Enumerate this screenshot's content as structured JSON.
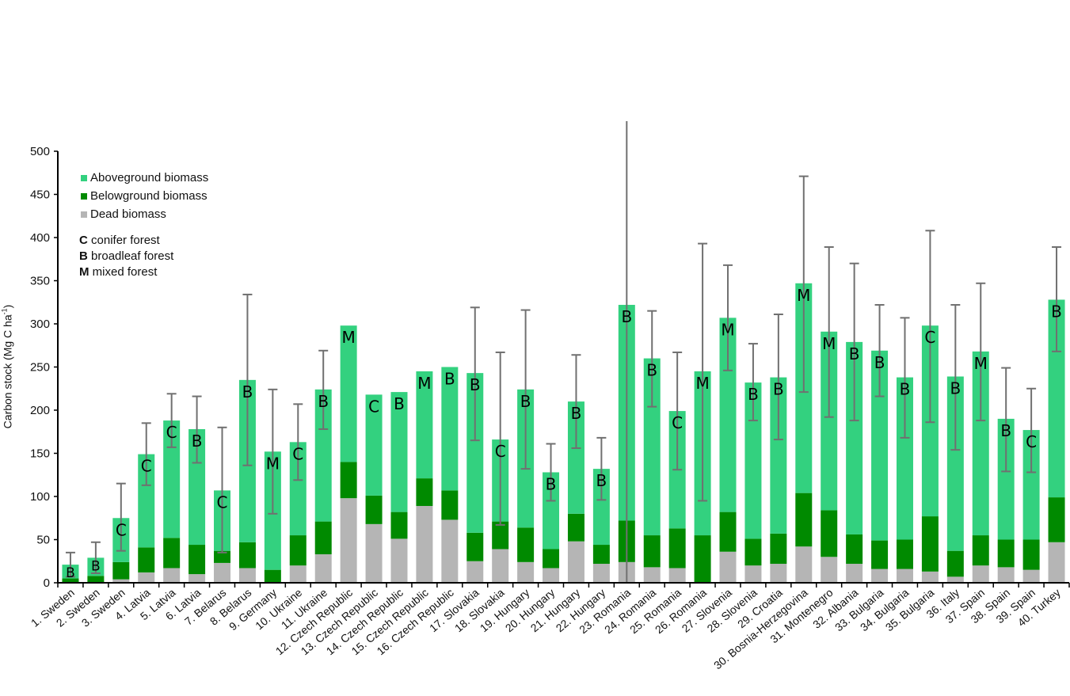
{
  "chart_data": {
    "type": "bar",
    "stacked": true,
    "title": "",
    "xlabel": "",
    "ylabel": "Carbon stock (Mg C ha",
    "ylabel_sup": "-1",
    "ylabel_suffix": ")",
    "ylim": [
      0,
      500
    ],
    "yticks": [
      0,
      50,
      100,
      150,
      200,
      250,
      300,
      350,
      400,
      450,
      500
    ],
    "grid": false,
    "legend_position": "top-left",
    "colors": {
      "aboveground": "#33D17F",
      "belowground": "#008A00",
      "dead": "#B5B5B5",
      "errorbar": "#707070"
    },
    "legend": [
      {
        "key": "aboveground",
        "label": "Aboveground biomass"
      },
      {
        "key": "belowground",
        "label": "Belowground biomass"
      },
      {
        "key": "dead",
        "label": "Dead biomass"
      }
    ],
    "forest_types": [
      {
        "code": "C",
        "label": "conifer forest"
      },
      {
        "code": "B",
        "label": "broadleaf forest"
      },
      {
        "code": "M",
        "label": "mixed forest"
      }
    ],
    "categories": [
      "1. Sweden",
      "2. Sweden",
      "3. Sweden",
      "4. Latvia",
      "5. Latvia",
      "6. Latvia",
      "7. Belarus",
      "8. Belarus",
      "9. Germany",
      "10. Ukraine",
      "11. Ukraine",
      "12. Czech Republic",
      "13. Czech Republic",
      "14. Czech Republic",
      "15. Czech Republic",
      "16. Czech Republic",
      "17. Slovakia",
      "18. Slovakia",
      "19. Hungary",
      "20. Hungary",
      "21. Hungary",
      "22. Hungary",
      "23. Romania",
      "24. Romania",
      "25. Romania",
      "26. Romania",
      "27. Slovenia",
      "28. Slovenia",
      "29. Croatia",
      "30. Bosnia-Herzegovina",
      "31. Montenegro",
      "32. Albania",
      "33. Bulgaria",
      "34. Bulgaria",
      "35. Bulgaria",
      "36. Italy",
      "37. Spain",
      "38. Spain",
      "39. Spain",
      "40. Turkey"
    ],
    "forest_type_labels": [
      "B",
      "B",
      "C",
      "C",
      "C",
      "B",
      "C",
      "B",
      "M",
      "C",
      "B",
      "M",
      "C",
      "B",
      "M",
      "B",
      "B",
      "C",
      "B",
      "B",
      "B",
      "B",
      "B",
      "B",
      "C",
      "M",
      "M",
      "B",
      "B",
      "M",
      "M",
      "B",
      "B",
      "B",
      "C",
      "B",
      "M",
      "B",
      "C",
      "B"
    ],
    "series": [
      {
        "name": "Dead biomass",
        "key": "dead",
        "values": [
          0,
          0,
          4,
          12,
          17,
          10,
          23,
          17,
          0,
          20,
          33,
          98,
          68,
          51,
          89,
          73,
          25,
          39,
          24,
          17,
          48,
          22,
          24,
          18,
          17,
          0,
          36,
          20,
          22,
          42,
          30,
          22,
          16,
          16,
          13,
          7,
          20,
          18,
          15,
          47
        ]
      },
      {
        "name": "Belowground biomass",
        "key": "belowground",
        "values": [
          5,
          8,
          20,
          29,
          35,
          34,
          14,
          30,
          15,
          35,
          38,
          42,
          33,
          31,
          32,
          34,
          33,
          32,
          40,
          22,
          32,
          22,
          48,
          37,
          46,
          55,
          46,
          31,
          35,
          62,
          54,
          34,
          33,
          34,
          64,
          30,
          35,
          32,
          35,
          52
        ]
      },
      {
        "name": "Aboveground biomass",
        "key": "aboveground",
        "values": [
          16,
          21,
          51,
          108,
          136,
          134,
          70,
          188,
          137,
          108,
          153,
          158,
          117,
          139,
          124,
          143,
          185,
          95,
          160,
          89,
          130,
          88,
          250,
          205,
          136,
          190,
          225,
          181,
          181,
          243,
          207,
          223,
          220,
          188,
          221,
          202,
          213,
          140,
          127,
          229
        ]
      }
    ],
    "totals": [
      21,
      29,
      75,
      149,
      188,
      178,
      107,
      235,
      152,
      163,
      224,
      298,
      218,
      221,
      245,
      250,
      243,
      166,
      224,
      128,
      210,
      132,
      322,
      260,
      199,
      245,
      307,
      232,
      238,
      347,
      291,
      279,
      269,
      238,
      298,
      239,
      268,
      190,
      177,
      328
    ],
    "error_bars": [
      [
        7,
        35
      ],
      [
        11,
        47
      ],
      [
        37,
        115
      ],
      [
        113,
        185
      ],
      [
        157,
        219
      ],
      [
        139,
        216
      ],
      [
        35,
        180
      ],
      [
        136,
        334
      ],
      [
        80,
        224
      ],
      [
        119,
        207
      ],
      [
        178,
        269
      ],
      null,
      null,
      null,
      null,
      null,
      [
        165,
        319
      ],
      [
        67,
        267
      ],
      [
        132,
        316
      ],
      [
        95,
        161
      ],
      [
        156,
        264
      ],
      [
        96,
        168
      ],
      [
        0,
        535
      ],
      [
        204,
        315
      ],
      [
        131,
        267
      ],
      [
        95,
        393
      ],
      [
        246,
        368
      ],
      [
        188,
        277
      ],
      [
        166,
        311
      ],
      [
        221,
        471
      ],
      [
        192,
        389
      ],
      [
        188,
        370
      ],
      [
        216,
        322
      ],
      [
        168,
        307
      ],
      [
        186,
        408
      ],
      [
        154,
        322
      ],
      [
        188,
        347
      ],
      [
        129,
        249
      ],
      [
        128,
        225
      ],
      [
        268,
        389
      ]
    ]
  }
}
